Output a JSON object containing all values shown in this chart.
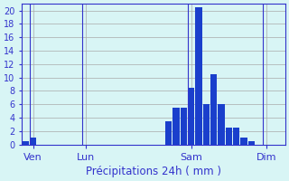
{
  "title": "",
  "xlabel": "Précipitations 24h ( mm )",
  "ylabel": "",
  "background_color": "#d8f5f5",
  "bar_color": "#1a3fcc",
  "grid_color": "#aaaaaa",
  "axis_color": "#3333cc",
  "ylim": [
    0,
    21
  ],
  "yticks": [
    0,
    2,
    4,
    6,
    8,
    10,
    12,
    14,
    16,
    18,
    20
  ],
  "n_bars": 35,
  "day_labels": [
    "Ven",
    "Lun",
    "Sam",
    "Dim"
  ],
  "day_positions": [
    1,
    8,
    22,
    32
  ],
  "bar_values": [
    0.5,
    1.0,
    0,
    0,
    0,
    0,
    0,
    0,
    0,
    0,
    0,
    0,
    0,
    0,
    0,
    0,
    0,
    0,
    0,
    3.5,
    5.5,
    5.5,
    8.5,
    20.5,
    6.0,
    10.5,
    6.0,
    2.5,
    2.5,
    1.0,
    0.5,
    0,
    0,
    0,
    0
  ]
}
